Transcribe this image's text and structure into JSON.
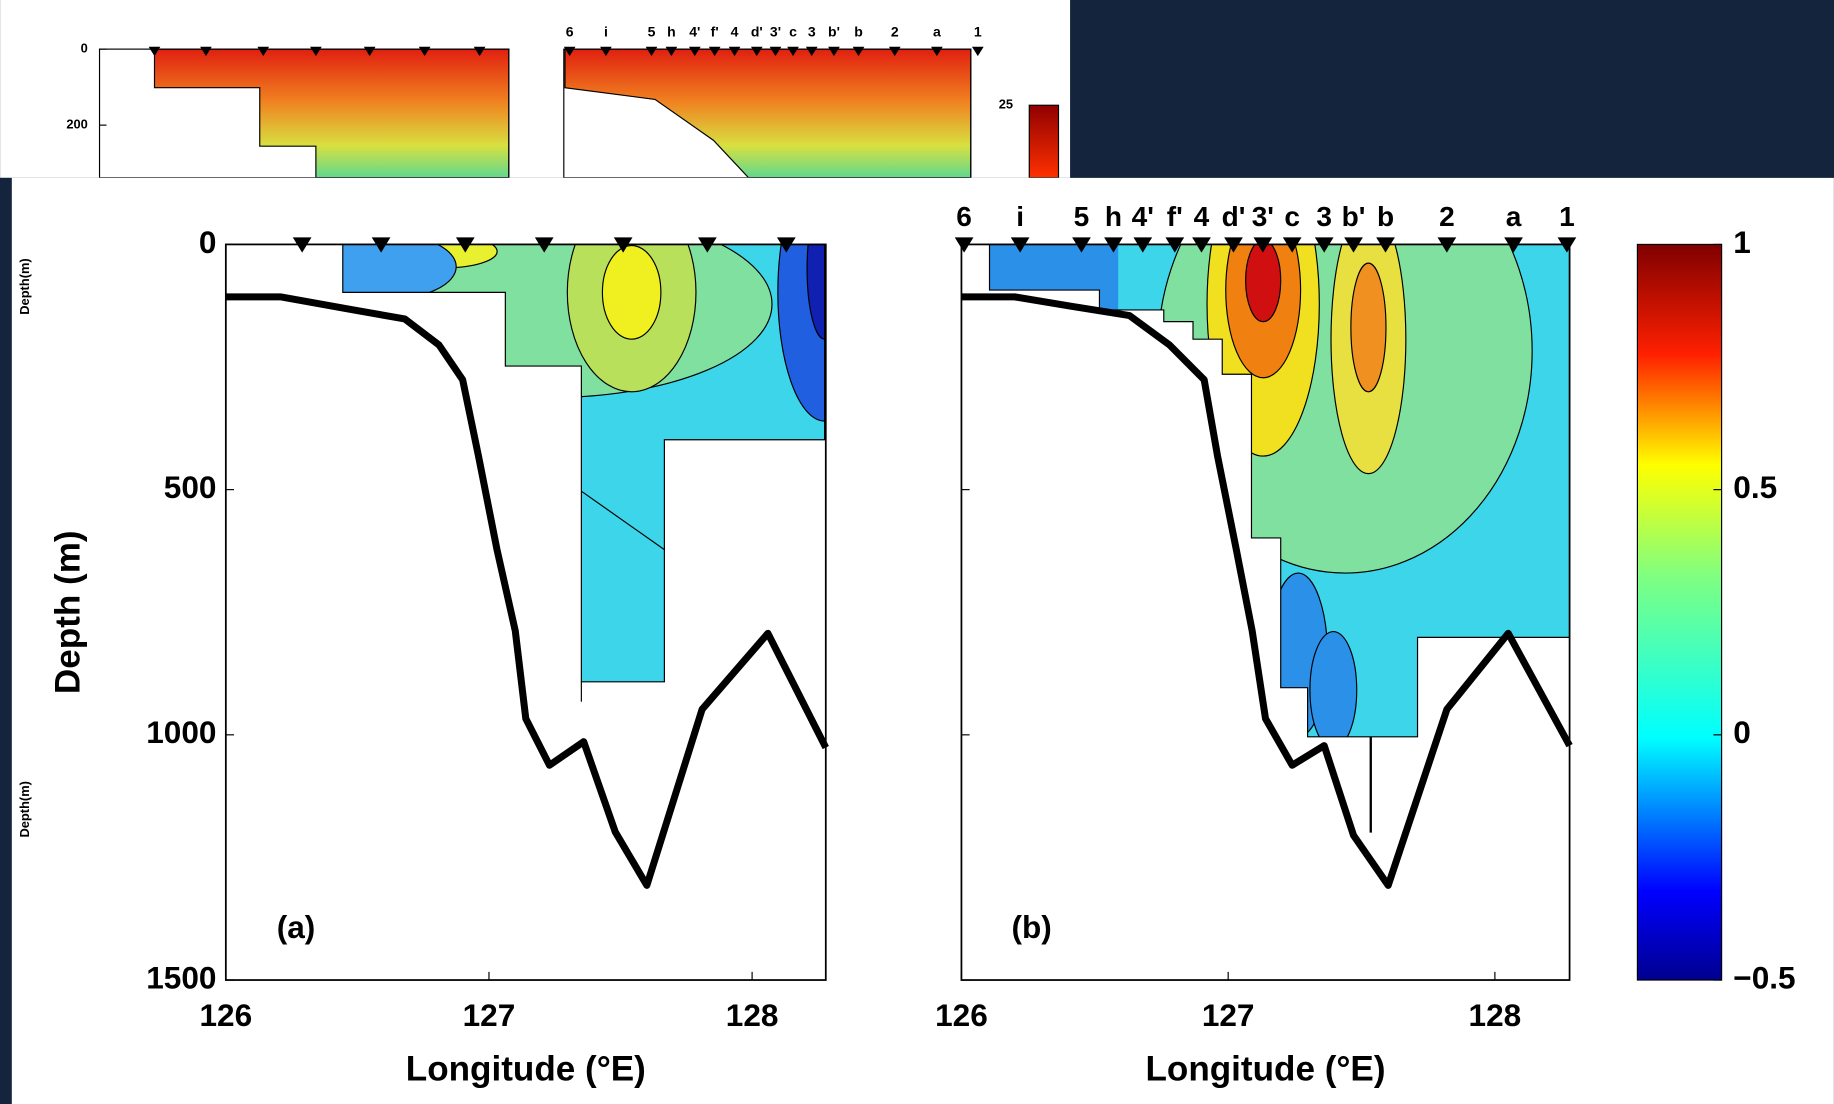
{
  "inset": {
    "yticks": [
      0,
      200
    ],
    "stations": [
      "6",
      "i",
      "5",
      "h",
      "4'",
      "f'",
      "4",
      "d'",
      "3'",
      "c",
      "3",
      "b'",
      "b",
      "2",
      "a",
      "1"
    ],
    "colorbar_label": "25",
    "side_label_top": "Depth(m)",
    "side_label_bottom": "Depth(m)"
  },
  "chart_data": [
    {
      "type": "line",
      "panel_label": "(a)",
      "y_label": "Depth (m)",
      "x_label": "Longitude (°E)",
      "x": [
        126.0,
        126.21,
        126.48,
        126.68,
        126.81,
        126.9,
        126.96,
        127.03,
        127.1,
        127.14,
        127.23,
        127.36,
        127.48,
        127.6,
        127.81,
        128.06,
        128.28
      ],
      "series": [
        {
          "color": "#000000",
          "values": [
            107,
            107,
            133,
            152,
            205,
            276,
            431,
            621,
            788,
            967,
            1062,
            1014,
            1198,
            1307,
            948,
            793,
            1026
          ]
        }
      ],
      "xlim": [
        126,
        128.28
      ],
      "ylim": [
        0,
        1500
      ],
      "y_inverted": true,
      "xticks": [
        126,
        127,
        128
      ],
      "yticks": [
        0,
        500,
        1000,
        1500
      ],
      "show_ytick_labels": true,
      "stations_x": [
        126.29,
        126.59,
        126.91,
        127.21,
        127.51,
        127.83,
        128.13
      ]
    },
    {
      "type": "line",
      "panel_label": "(b)",
      "x_label": "Longitude (°E)",
      "x": [
        126.0,
        126.2,
        126.41,
        126.63,
        126.78,
        126.91,
        126.96,
        127.03,
        127.09,
        127.14,
        127.24,
        127.36,
        127.47,
        127.6,
        127.82,
        128.05,
        128.28
      ],
      "series": [
        {
          "color": "#000000",
          "values": [
            107,
            107,
            126,
            145,
            205,
            276,
            431,
            621,
            788,
            967,
            1062,
            1022,
            1205,
            1307,
            948,
            793,
            1022
          ]
        }
      ],
      "xlim": [
        126,
        128.28
      ],
      "ylim": [
        0,
        1500
      ],
      "y_inverted": true,
      "xticks": [
        126,
        127,
        128
      ],
      "yticks": [
        0,
        500,
        1000,
        1500
      ],
      "show_ytick_labels": false,
      "stations_x": [
        126.01,
        126.22,
        126.45,
        126.57,
        126.68,
        126.8,
        126.9,
        127.02,
        127.13,
        127.24,
        127.36,
        127.47,
        127.59,
        127.82,
        128.07,
        128.27
      ],
      "station_labels": [
        "6",
        "i",
        "5",
        "h",
        "4'",
        "f'",
        "4",
        "d'",
        "3'",
        "c",
        "3",
        "b'",
        "b",
        "2",
        "a",
        "1"
      ]
    }
  ],
  "colorbar": {
    "lim": [
      -0.5,
      1
    ],
    "ticks": [
      1,
      0.5,
      0,
      {
        "value": -0.5,
        "label": "−0.5"
      }
    ]
  }
}
